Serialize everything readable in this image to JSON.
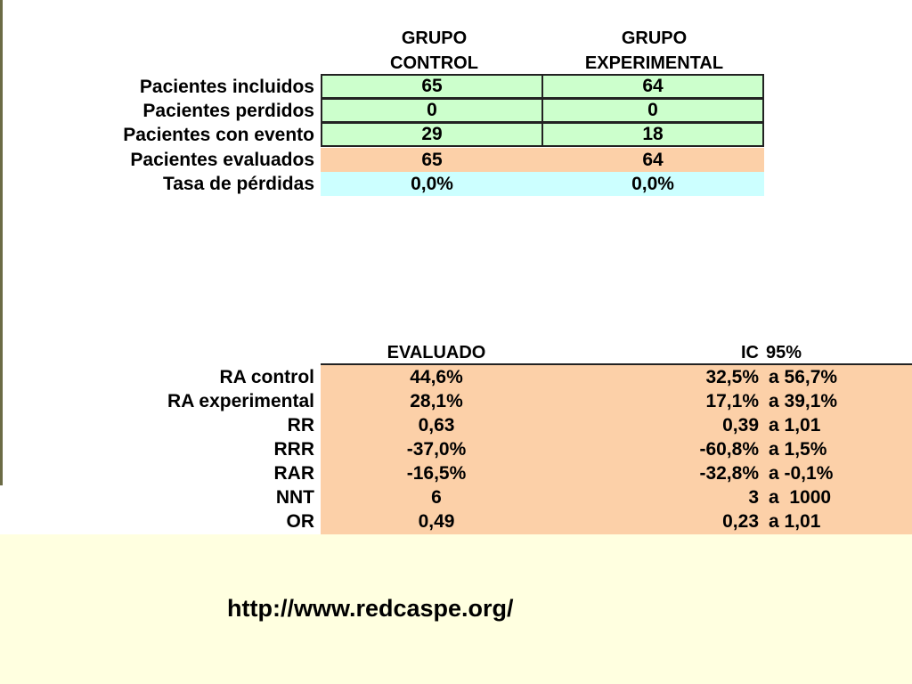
{
  "table1": {
    "col_headers": [
      [
        "GRUPO",
        "CONTROL"
      ],
      [
        "GRUPO",
        "EXPERIMENTAL"
      ]
    ],
    "rows": [
      {
        "label": "Pacientes incluidos",
        "control": "65",
        "experimental": "64"
      },
      {
        "label": "Pacientes perdidos",
        "control": "0",
        "experimental": "0"
      },
      {
        "label": "Pacientes con evento",
        "control": "29",
        "experimental": "18"
      },
      {
        "label": "Pacientes evaluados",
        "control": "65",
        "experimental": "64"
      },
      {
        "label": "Tasa de pérdidas",
        "control": "0,0%",
        "experimental": "0,0%"
      }
    ]
  },
  "table2": {
    "header_evaluado": "EVALUADO",
    "header_ic": "IC",
    "header_pct": "95%",
    "rows": [
      {
        "label": "RA  control",
        "evaluado": "44,6%",
        "ic_low": "32,5%",
        "ic_high": "a 56,7%"
      },
      {
        "label": "RA  experimental",
        "evaluado": "28,1%",
        "ic_low": "17,1%",
        "ic_high": "a 39,1%"
      },
      {
        "label": "RR",
        "evaluado": "0,63",
        "ic_low": "0,39",
        "ic_high": "a 1,01"
      },
      {
        "label": "RRR",
        "evaluado": "-37,0%",
        "ic_low": "-60,8%",
        "ic_high": "a 1,5%"
      },
      {
        "label": "RAR",
        "evaluado": "-16,5%",
        "ic_low": "-32,8%",
        "ic_high": "a -0,1%"
      },
      {
        "label": "NNT",
        "evaluado": "6",
        "ic_low": "3",
        "ic_high": "a  1000"
      },
      {
        "label": "OR",
        "evaluado": "0,49",
        "ic_low": "0,23",
        "ic_high": "a 1,01"
      }
    ]
  },
  "footer": {
    "url": "http://www.redcaspe.org/"
  },
  "colors": {
    "green": "#ccffcc",
    "orange": "#fcd0a8",
    "cyan": "#ccffff",
    "background": "#ffffe0"
  }
}
